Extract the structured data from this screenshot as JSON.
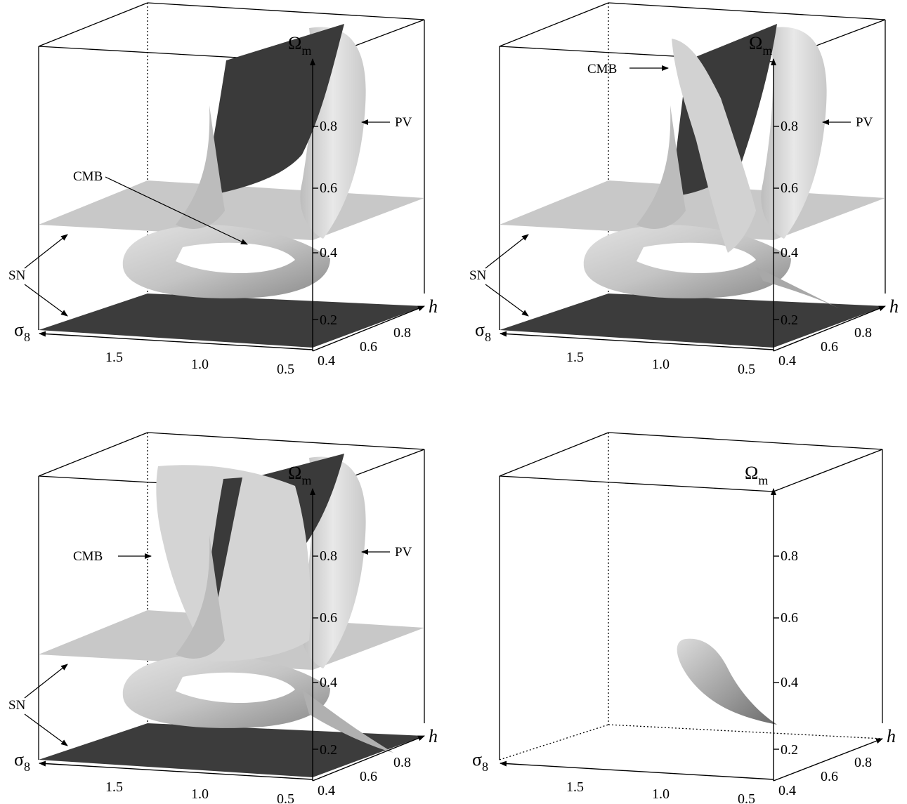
{
  "panels": [
    {
      "id": "top-left",
      "axis_omega": "Ω",
      "axis_omega_sub": "m",
      "axis_h": "h",
      "axis_sigma": "σ",
      "axis_sigma_sub": "8",
      "omega_ticks": [
        "0.8",
        "0.6",
        "0.4",
        "0.2"
      ],
      "sigma_ticks": [
        "1.5",
        "1.0",
        "0.5"
      ],
      "h_ticks": [
        "0.4",
        "0.6",
        "0.8"
      ],
      "labels": {
        "cmb": "CMB",
        "pv": "PV",
        "sn": "SN"
      }
    },
    {
      "id": "top-right",
      "axis_omega": "Ω",
      "axis_omega_sub": "m",
      "axis_h": "h",
      "axis_sigma": "σ",
      "axis_sigma_sub": "8",
      "omega_ticks": [
        "0.8",
        "0.6",
        "0.4",
        "0.2"
      ],
      "sigma_ticks": [
        "1.5",
        "1.0",
        "0.5"
      ],
      "h_ticks": [
        "0.4",
        "0.6",
        "0.8"
      ],
      "labels": {
        "cmb": "CMB",
        "pv": "PV",
        "sn": "SN"
      }
    },
    {
      "id": "bottom-left",
      "axis_omega": "Ω",
      "axis_omega_sub": "m",
      "axis_h": "h",
      "axis_sigma": "σ",
      "axis_sigma_sub": "8",
      "omega_ticks": [
        "0.8",
        "0.6",
        "0.4",
        "0.2"
      ],
      "sigma_ticks": [
        "1.5",
        "1.0",
        "0.5"
      ],
      "h_ticks": [
        "0.4",
        "0.6",
        "0.8"
      ],
      "labels": {
        "cmb": "CMB",
        "pv": "PV",
        "sn": "SN"
      }
    },
    {
      "id": "bottom-right",
      "axis_omega": "Ω",
      "axis_omega_sub": "m",
      "axis_h": "h",
      "axis_sigma": "σ",
      "axis_sigma_sub": "8",
      "omega_ticks": [
        "0.8",
        "0.6",
        "0.4",
        "0.2"
      ],
      "sigma_ticks": [
        "1.5",
        "1.0",
        "0.5"
      ],
      "h_ticks": [
        "0.4",
        "0.6",
        "0.8"
      ],
      "labels": {}
    }
  ],
  "colors": {
    "dark_plane": "#3c3c3c",
    "light_plane": "#c8c8c8",
    "surface_light": "#d8d8d8",
    "surface_mid": "#a8a8a8",
    "surface_dark": "#3a3a3a",
    "box_line": "#000000"
  }
}
